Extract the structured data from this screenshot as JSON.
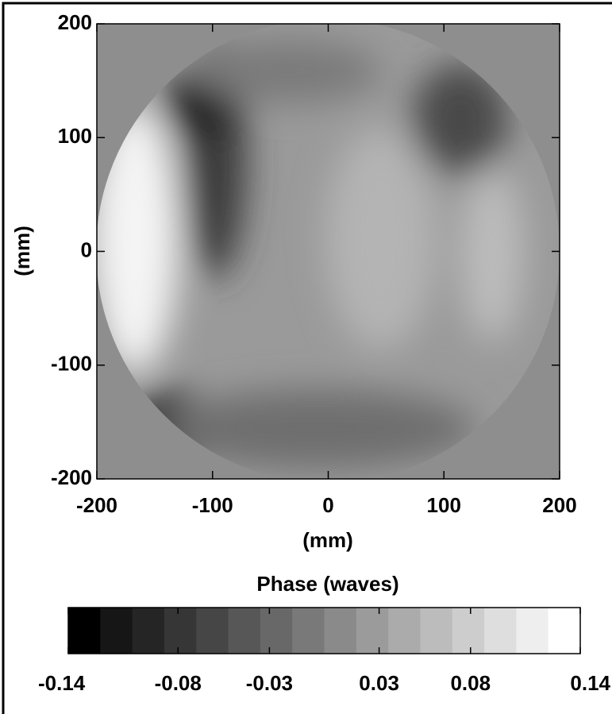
{
  "chart_data": {
    "type": "heatmap",
    "xlabel": "(mm)",
    "ylabel": "(mm)",
    "xlim": [
      -200,
      200
    ],
    "ylim": [
      -200,
      200
    ],
    "xticks": [
      -200,
      -100,
      0,
      100,
      200
    ],
    "yticks": [
      -200,
      -100,
      0,
      100,
      200
    ],
    "colorbar_title": "Phase  (waves)",
    "zlim": [
      -0.14,
      0.14
    ],
    "colorbar_ticks": [
      -0.14,
      -0.08,
      -0.03,
      0.03,
      0.08,
      0.14
    ],
    "colormap": [
      "#000000",
      "#161616",
      "#252525",
      "#363636",
      "#464646",
      "#575757",
      "#686868",
      "#797979",
      "#8a8a8a",
      "#9b9b9b",
      "#ababab",
      "#bcbcbc",
      "#cdcdcd",
      "#dedede",
      "#eeeeee",
      "#ffffff"
    ]
  }
}
